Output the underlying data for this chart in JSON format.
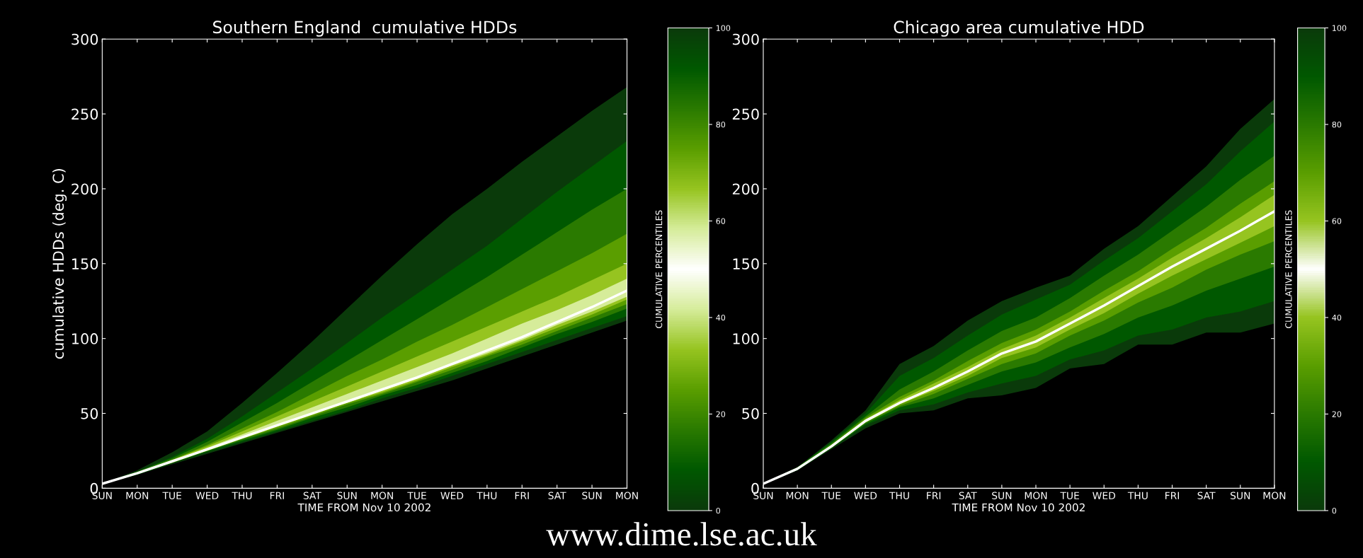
{
  "chart_data": [
    {
      "type": "line",
      "title": "Southern England  cumulative HDDs",
      "xlabel": "TIME FROM Nov 10 2002",
      "ylabel": "cumulative HDDs (deg. C)",
      "clabel": "CUMULATIVE PERCENTILES",
      "clim": [
        0,
        100
      ],
      "cticks": [
        0,
        20,
        40,
        60,
        80,
        100
      ],
      "annotations": [
        "www.dime.lse.ac.uk"
      ],
      "categories": [
        "SUN",
        "MON",
        "TUE",
        "WED",
        "THU",
        "FRI",
        "SAT",
        "SUN",
        "MON",
        "TUE",
        "WED",
        "THU",
        "FRI",
        "SAT",
        "SUN",
        "MON"
      ],
      "ylim": [
        0,
        300
      ],
      "yticks": [
        0,
        50,
        100,
        150,
        200,
        250,
        300
      ],
      "grid": false,
      "legend": false,
      "series": [
        {
          "color": "#0a3a0a",
          "values": [
            null,
            null,
            null,
            null,
            null,
            null,
            null,
            null,
            null,
            null,
            null,
            null,
            null,
            null,
            null,
            null
          ],
          "upper": [
            3,
            12,
            24,
            38,
            57,
            77,
            98,
            120,
            142,
            163,
            183,
            200,
            218,
            235,
            252,
            268
          ],
          "lower": [
            3,
            9,
            16,
            23,
            30,
            37,
            44,
            51,
            58,
            65,
            72,
            80,
            88,
            96,
            104,
            112
          ]
        },
        {
          "color": "#005800",
          "values": [
            null,
            null,
            null,
            null,
            null,
            null,
            null,
            null,
            null,
            null,
            null,
            null,
            null,
            null,
            null,
            null
          ],
          "upper": [
            3,
            11,
            21,
            33,
            48,
            64,
            80,
            97,
            114,
            130,
            146,
            162,
            180,
            198,
            215,
            232
          ],
          "lower": [
            3,
            9,
            17,
            24,
            31,
            38,
            45,
            52,
            60,
            67,
            75,
            83,
            91,
            99,
            107,
            115
          ]
        },
        {
          "color": "#2a7a00",
          "values": [
            null,
            null,
            null,
            null,
            null,
            null,
            null,
            null,
            null,
            null,
            null,
            null,
            null,
            null,
            null,
            null
          ],
          "upper": [
            3,
            11,
            20,
            31,
            44,
            57,
            71,
            85,
            99,
            113,
            127,
            141,
            156,
            171,
            186,
            200
          ],
          "lower": [
            3,
            10,
            17,
            25,
            32,
            39,
            47,
            54,
            62,
            69,
            77,
            85,
            94,
            103,
            111,
            120
          ]
        },
        {
          "color": "#5a9e00",
          "values": [
            null,
            null,
            null,
            null,
            null,
            null,
            null,
            null,
            null,
            null,
            null,
            null,
            null,
            null,
            null,
            null
          ],
          "upper": [
            3,
            10,
            19,
            29,
            40,
            51,
            63,
            75,
            86,
            98,
            109,
            121,
            133,
            145,
            157,
            170
          ],
          "lower": [
            3,
            10,
            17,
            25,
            33,
            40,
            48,
            56,
            63,
            71,
            79,
            88,
            96,
            105,
            114,
            123
          ]
        },
        {
          "color": "#96c420",
          "values": [
            null,
            null,
            null,
            null,
            null,
            null,
            null,
            null,
            null,
            null,
            null,
            null,
            null,
            null,
            null,
            null
          ],
          "upper": [
            3,
            10,
            19,
            28,
            38,
            48,
            58,
            68,
            78,
            88,
            98,
            108,
            118,
            128,
            139,
            150
          ],
          "lower": [
            3,
            10,
            18,
            25,
            33,
            41,
            49,
            57,
            64,
            72,
            81,
            89,
            98,
            107,
            116,
            126
          ]
        },
        {
          "color": "#d6ec9a",
          "values": [
            null,
            null,
            null,
            null,
            null,
            null,
            null,
            null,
            null,
            null,
            null,
            null,
            null,
            null,
            null,
            null
          ],
          "upper": [
            3,
            10,
            18,
            27,
            36,
            45,
            54,
            63,
            72,
            81,
            90,
            100,
            110,
            119,
            129,
            140
          ],
          "lower": [
            3,
            10,
            18,
            26,
            34,
            42,
            50,
            57,
            65,
            73,
            82,
            90,
            99,
            109,
            118,
            128
          ]
        },
        {
          "color": "#ffffff",
          "values": [
            3,
            10,
            18,
            26,
            34,
            42,
            50,
            58,
            66,
            74,
            83,
            92,
            101,
            111,
            121,
            132
          ]
        }
      ]
    },
    {
      "type": "line",
      "title": "Chicago area cumulative HDD",
      "xlabel": "TIME FROM Nov 10 2002",
      "clabel": "CUMULATIVE PERCENTILES",
      "clim": [
        0,
        100
      ],
      "cticks": [
        0,
        20,
        40,
        60,
        80,
        100
      ],
      "categories": [
        "SUN",
        "MON",
        "TUE",
        "WED",
        "THU",
        "FRI",
        "SAT",
        "SUN",
        "MON",
        "TUE",
        "WED",
        "THU",
        "FRI",
        "SAT",
        "SUN",
        "MON"
      ],
      "ylim": [
        0,
        300
      ],
      "yticks": [
        0,
        50,
        100,
        150,
        200,
        250,
        300
      ],
      "grid": false,
      "legend": false,
      "series": [
        {
          "color": "#0a3a0a",
          "values": [
            null,
            null,
            null,
            null,
            null,
            null,
            null,
            null,
            null,
            null,
            null,
            null,
            null,
            null,
            null,
            null
          ],
          "upper": [
            3,
            14,
            32,
            52,
            83,
            95,
            112,
            125,
            134,
            142,
            160,
            175,
            195,
            215,
            240,
            260
          ],
          "lower": [
            3,
            12,
            26,
            40,
            50,
            52,
            60,
            62,
            67,
            80,
            83,
            96,
            96,
            104,
            104,
            110
          ]
        },
        {
          "color": "#005800",
          "values": [
            null,
            null,
            null,
            null,
            null,
            null,
            null,
            null,
            null,
            null,
            null,
            null,
            null,
            null,
            null,
            null
          ],
          "upper": [
            3,
            14,
            31,
            50,
            75,
            87,
            102,
            116,
            126,
            136,
            152,
            167,
            185,
            203,
            225,
            245
          ],
          "lower": [
            3,
            12,
            27,
            42,
            52,
            56,
            64,
            70,
            75,
            86,
            92,
            102,
            106,
            114,
            118,
            125
          ]
        },
        {
          "color": "#2a7a00",
          "values": [
            null,
            null,
            null,
            null,
            null,
            null,
            null,
            null,
            null,
            null,
            null,
            null,
            null,
            null,
            null,
            null
          ],
          "upper": [
            3,
            14,
            30,
            48,
            66,
            78,
            92,
            105,
            114,
            127,
            142,
            156,
            172,
            188,
            206,
            222
          ],
          "lower": [
            3,
            13,
            27,
            43,
            54,
            60,
            69,
            78,
            84,
            94,
            103,
            114,
            122,
            132,
            140,
            148
          ]
        },
        {
          "color": "#5a9e00",
          "values": [
            null,
            null,
            null,
            null,
            null,
            null,
            null,
            null,
            null,
            null,
            null,
            null,
            null,
            null,
            null,
            null
          ],
          "upper": [
            3,
            13,
            29,
            47,
            61,
            72,
            85,
            97,
            106,
            118,
            132,
            145,
            160,
            174,
            190,
            205
          ],
          "lower": [
            3,
            13,
            27,
            44,
            55,
            63,
            73,
            83,
            90,
            102,
            112,
            124,
            134,
            146,
            156,
            165
          ]
        },
        {
          "color": "#96c420",
          "values": [
            null,
            null,
            null,
            null,
            null,
            null,
            null,
            null,
            null,
            null,
            null,
            null,
            null,
            null,
            null,
            null
          ],
          "upper": [
            3,
            13,
            29,
            46,
            59,
            70,
            81,
            93,
            102,
            114,
            127,
            140,
            154,
            167,
            181,
            196
          ],
          "lower": [
            3,
            13,
            28,
            44,
            56,
            65,
            75,
            87,
            94,
            106,
            117,
            130,
            142,
            153,
            164,
            175
          ]
        },
        {
          "color": "#ffffff",
          "values": [
            3,
            13,
            28,
            45,
            57,
            67,
            78,
            90,
            98,
            110,
            122,
            135,
            148,
            160,
            172,
            185
          ]
        }
      ]
    }
  ]
}
